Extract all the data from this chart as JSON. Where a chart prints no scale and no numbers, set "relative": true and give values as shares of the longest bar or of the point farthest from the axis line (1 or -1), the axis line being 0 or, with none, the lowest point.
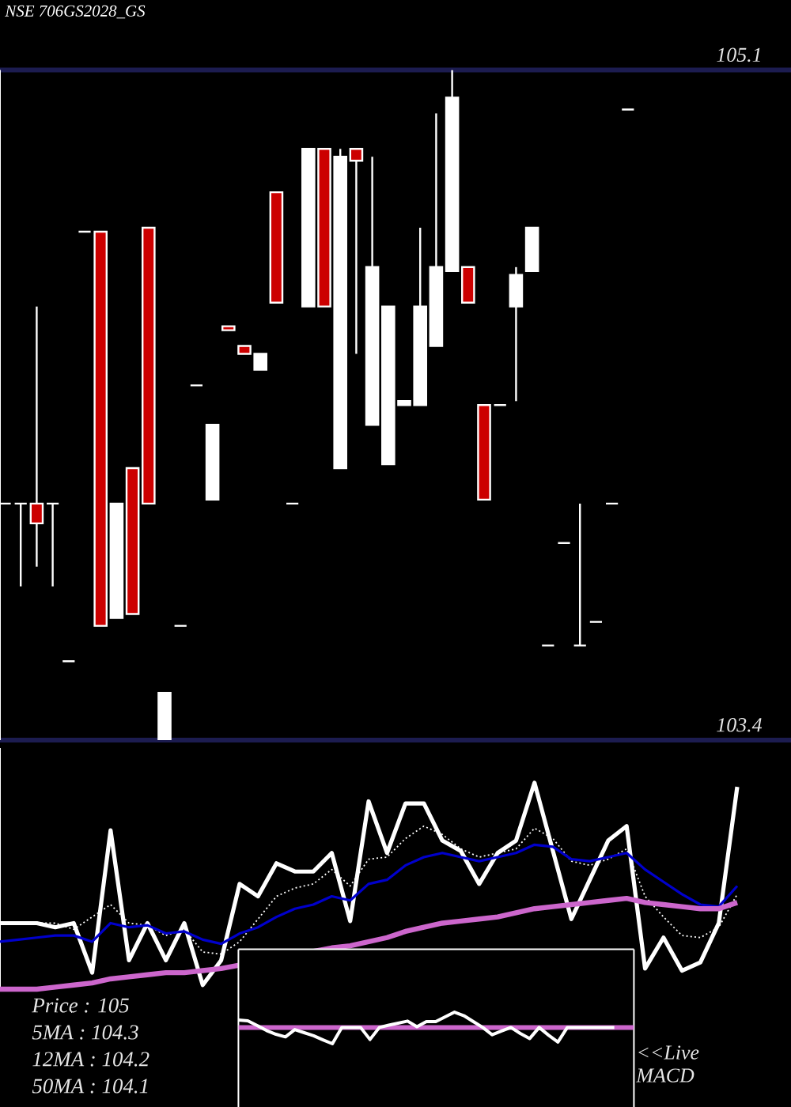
{
  "chart_data": [
    {
      "type": "candlestick",
      "title": "NSE 706GS2028_GS",
      "categories": [
        null,
        null,
        null,
        null,
        null,
        null,
        null,
        null,
        null,
        null,
        null,
        null,
        null,
        null,
        null,
        null,
        null,
        null,
        null,
        null,
        null,
        null,
        null,
        null,
        null,
        null,
        null,
        null,
        null,
        null,
        null,
        null,
        null,
        null,
        null,
        null,
        null,
        null,
        null,
        null
      ],
      "ohlc": [
        [
          104.0,
          104.0,
          104.0,
          104.0
        ],
        [
          104.0,
          104.0,
          103.79,
          104.0
        ],
        [
          104.0,
          104.5,
          103.84,
          103.95
        ],
        [
          104.0,
          104.0,
          103.79,
          104.0
        ],
        [
          103.6,
          103.6,
          103.6,
          103.6
        ],
        [
          104.69,
          104.69,
          104.69,
          104.69
        ],
        [
          104.69,
          104.69,
          103.69,
          103.69
        ],
        [
          103.71,
          104.0,
          103.71,
          104.0
        ],
        [
          104.09,
          104.09,
          103.72,
          103.72
        ],
        [
          104.7,
          104.7,
          104.0,
          104.0
        ],
        [
          103.4,
          103.52,
          103.4,
          103.52
        ],
        [
          103.69,
          103.69,
          103.69,
          103.69
        ],
        [
          104.3,
          104.3,
          104.3,
          104.3
        ],
        [
          104.01,
          104.2,
          104.01,
          104.2
        ],
        [
          104.45,
          104.45,
          104.44,
          104.44
        ],
        [
          104.4,
          104.4,
          104.38,
          104.38
        ],
        [
          104.34,
          104.38,
          104.34,
          104.38
        ],
        [
          104.79,
          104.79,
          104.51,
          104.51
        ],
        [
          104.0,
          104.0,
          104.0,
          104.0
        ],
        [
          104.5,
          104.9,
          104.5,
          104.9
        ],
        [
          104.9,
          104.9,
          104.5,
          104.5
        ],
        [
          104.09,
          104.9,
          104.09,
          104.88
        ],
        [
          104.9,
          104.9,
          104.38,
          104.87
        ],
        [
          104.2,
          104.88,
          104.2,
          104.6
        ],
        [
          104.1,
          104.5,
          104.1,
          104.5
        ],
        [
          104.25,
          104.26,
          104.25,
          104.26
        ],
        [
          104.25,
          104.7,
          104.25,
          104.5
        ],
        [
          104.4,
          104.99,
          104.4,
          104.6
        ],
        [
          104.59,
          105.1,
          104.59,
          105.03
        ],
        [
          104.6,
          104.6,
          104.51,
          104.51
        ],
        [
          104.25,
          104.25,
          104.01,
          104.01
        ],
        [
          104.25,
          104.25,
          104.25,
          104.25
        ],
        [
          104.5,
          104.6,
          104.26,
          104.58
        ],
        [
          104.59,
          104.7,
          104.59,
          104.7
        ],
        [
          103.64,
          103.64,
          103.64,
          103.64
        ],
        [
          103.9,
          103.9,
          103.9,
          103.9
        ],
        [
          103.64,
          104.0,
          103.64,
          103.64
        ],
        [
          103.7,
          103.7,
          103.7,
          103.7
        ],
        [
          104.0,
          104.0,
          104.0,
          104.0
        ],
        [
          105.0,
          105.0,
          105.0,
          105.0
        ]
      ],
      "colors": [
        "#ffffff",
        "#ffffff",
        "#cc0000",
        "#ffffff",
        "#ffffff",
        "#ffffff",
        "#cc0000",
        "#ffffff",
        "#cc0000",
        "#cc0000",
        "#ffffff",
        "#ffffff",
        "#ffffff",
        "#ffffff",
        "#cc0000",
        "#cc0000",
        "#ffffff",
        "#cc0000",
        "#ffffff",
        "#ffffff",
        "#cc0000",
        "#ffffff",
        "#cc0000",
        "#ffffff",
        "#ffffff",
        "#ffffff",
        "#ffffff",
        "#ffffff",
        "#ffffff",
        "#cc0000",
        "#cc0000",
        "#ffffff",
        "#ffffff",
        "#ffffff",
        "#ffffff",
        "#ffffff",
        "#ffffff",
        "#ffffff",
        "#ffffff",
        "#ffffff"
      ],
      "ylim": [
        103.4,
        105.1
      ],
      "yticks": [
        103.4,
        105.1
      ],
      "grid": "y",
      "tick_labels": "y"
    },
    {
      "type": "line",
      "relative": true,
      "categories": [
        null,
        null,
        null,
        null,
        null,
        null,
        null,
        null,
        null,
        null,
        null,
        null,
        null,
        null,
        null,
        null,
        null,
        null,
        null,
        null,
        null,
        null,
        null,
        null,
        null,
        null,
        null,
        null,
        null,
        null,
        null,
        null,
        null,
        null,
        null,
        null,
        null,
        null,
        null,
        null,
        null
      ],
      "series": [
        {
          "color": "#ffffff",
          "values": [
            0.32,
            0.32,
            0.32,
            0.3,
            0.32,
            0.08,
            0.77,
            0.14,
            0.32,
            0.14,
            0.32,
            0.02,
            0.14,
            0.51,
            0.45,
            0.61,
            0.57,
            0.57,
            0.66,
            0.33,
            0.91,
            0.66,
            0.9,
            0.9,
            0.72,
            0.67,
            0.51,
            0.66,
            0.72,
            1.0,
            0.67,
            0.34,
            0.53,
            0.72,
            0.79,
            0.1,
            0.25,
            0.09,
            0.13,
            0.32,
            0.98
          ]
        },
        {
          "color": "#ffffff",
          "line_style": "dotted",
          "values": [
            0.32,
            0.32,
            0.32,
            0.32,
            0.29,
            0.35,
            0.41,
            0.32,
            0.31,
            0.26,
            0.29,
            0.18,
            0.17,
            0.23,
            0.34,
            0.45,
            0.49,
            0.51,
            0.58,
            0.5,
            0.63,
            0.64,
            0.73,
            0.79,
            0.75,
            0.68,
            0.64,
            0.66,
            0.68,
            0.78,
            0.73,
            0.62,
            0.6,
            0.63,
            0.68,
            0.45,
            0.35,
            0.26,
            0.25,
            0.3,
            0.46
          ]
        },
        {
          "color": "#0000cc",
          "values": [
            0.23,
            0.24,
            0.25,
            0.26,
            0.26,
            0.23,
            0.32,
            0.3,
            0.31,
            0.27,
            0.28,
            0.24,
            0.22,
            0.27,
            0.3,
            0.35,
            0.39,
            0.41,
            0.45,
            0.43,
            0.51,
            0.53,
            0.6,
            0.64,
            0.66,
            0.64,
            0.62,
            0.64,
            0.66,
            0.7,
            0.69,
            0.63,
            0.62,
            0.64,
            0.66,
            0.58,
            0.52,
            0.46,
            0.41,
            0.4,
            0.5
          ]
        },
        {
          "color": "#cc66cc",
          "values": [
            0,
            0,
            0,
            0.01,
            0.02,
            0.03,
            0.05,
            0.06,
            0.07,
            0.08,
            0.08,
            0.09,
            0.1,
            null,
            null,
            null,
            null,
            null,
            0.2,
            0.21,
            0.23,
            0.25,
            0.28,
            0.3,
            0.32,
            0.33,
            0.34,
            0.35,
            0.37,
            0.39,
            0.4,
            0.41,
            0.42,
            0.43,
            0.44,
            0.42,
            0.41,
            0.4,
            0.39,
            0.39,
            0.42
          ]
        }
      ],
      "annotations": [
        "Price : 105",
        "5MA : 104.3",
        "12MA : 104.2",
        "50MA : 104.1"
      ]
    },
    {
      "type": "line",
      "relative": true,
      "categories": [
        null,
        null,
        null,
        null,
        null,
        null,
        null,
        null,
        null,
        null,
        null,
        null,
        null,
        null,
        null,
        null,
        null,
        null,
        null,
        null,
        null,
        null,
        null,
        null,
        null,
        null,
        null,
        null,
        null,
        null,
        null,
        null,
        null,
        null,
        null,
        null,
        null,
        null,
        null,
        null,
        null
      ],
      "series": [
        {
          "color": "#ffffff",
          "values": [
            0.46,
            0.41,
            0.12,
            -0.19,
            -0.42,
            -0.58,
            -0.13,
            -0.32,
            -0.51,
            -0.76,
            -1.0,
            0,
            0,
            0,
            -0.74,
            0,
            0.14,
            0.26,
            0.39,
            0.04,
            0.36,
            0.36,
            0.65,
            0.94,
            0.72,
            0.36,
            0,
            -0.45,
            -0.22,
            0,
            -0.37,
            -0.68,
            0,
            -0.47,
            -0.9,
            0,
            0,
            0,
            0,
            0,
            0
          ]
        }
      ],
      "ref_lines": [
        {
          "axis": "y",
          "value": 0,
          "color": "#cc66cc"
        }
      ],
      "annotations": [
        "<<Live MACD"
      ]
    }
  ]
}
